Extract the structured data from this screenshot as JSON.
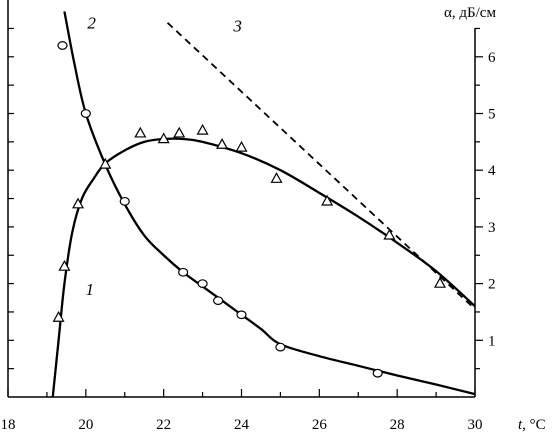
{
  "chart_data": {
    "type": "line",
    "xlabel_var": "t",
    "xlabel_unit": ", °C",
    "ylabel": "α, дБ/см",
    "xlim": [
      18,
      30
    ],
    "ylim": [
      0,
      7
    ],
    "x_tick_labels": [
      "18",
      "20",
      "22",
      "24",
      "26",
      "28",
      "30"
    ],
    "y_tick_labels": [
      "1",
      "2",
      "3",
      "4",
      "5",
      "6"
    ],
    "series": [
      {
        "name": "1",
        "marker": "triangle",
        "style": "solid",
        "curve": [
          [
            19.15,
            0.0
          ],
          [
            19.3,
            1.0
          ],
          [
            19.45,
            2.0
          ],
          [
            19.65,
            2.9
          ],
          [
            19.9,
            3.5
          ],
          [
            20.2,
            3.85
          ],
          [
            20.5,
            4.12
          ],
          [
            21.0,
            4.35
          ],
          [
            21.5,
            4.5
          ],
          [
            22.0,
            4.55
          ],
          [
            22.5,
            4.55
          ],
          [
            23.0,
            4.5
          ],
          [
            24.0,
            4.3
          ],
          [
            25.0,
            4.0
          ],
          [
            26.0,
            3.6
          ],
          [
            27.0,
            3.18
          ],
          [
            28.0,
            2.72
          ],
          [
            29.0,
            2.22
          ],
          [
            30.0,
            1.6
          ]
        ],
        "points": [
          [
            19.3,
            1.4
          ],
          [
            19.45,
            2.3
          ],
          [
            19.8,
            3.4
          ],
          [
            20.5,
            4.1
          ],
          [
            21.4,
            4.65
          ],
          [
            22.0,
            4.55
          ],
          [
            22.4,
            4.65
          ],
          [
            23.0,
            4.7
          ],
          [
            23.5,
            4.45
          ],
          [
            24.0,
            4.4
          ],
          [
            24.9,
            3.85
          ],
          [
            26.2,
            3.45
          ],
          [
            27.8,
            2.85
          ],
          [
            29.1,
            2.0
          ]
        ]
      },
      {
        "name": "2",
        "marker": "circle",
        "style": "solid",
        "curve": [
          [
            19.45,
            6.8
          ],
          [
            19.7,
            5.9
          ],
          [
            20.0,
            5.0
          ],
          [
            20.5,
            4.1
          ],
          [
            21.0,
            3.4
          ],
          [
            21.5,
            2.85
          ],
          [
            22.0,
            2.5
          ],
          [
            22.5,
            2.2
          ],
          [
            23.0,
            1.95
          ],
          [
            23.5,
            1.7
          ],
          [
            24.0,
            1.45
          ],
          [
            24.5,
            1.2
          ],
          [
            25.0,
            0.93
          ],
          [
            26.0,
            0.72
          ],
          [
            27.0,
            0.55
          ],
          [
            28.0,
            0.38
          ],
          [
            29.0,
            0.22
          ],
          [
            30.0,
            0.05
          ]
        ],
        "points": [
          [
            19.4,
            6.2
          ],
          [
            20.0,
            5.0
          ],
          [
            21.0,
            3.45
          ],
          [
            22.5,
            2.2
          ],
          [
            23.0,
            2.0
          ],
          [
            23.4,
            1.7
          ],
          [
            24.0,
            1.45
          ],
          [
            25.0,
            0.88
          ],
          [
            27.5,
            0.42
          ]
        ]
      },
      {
        "name": "3",
        "marker": "none",
        "style": "dashed",
        "curve": [
          [
            22.1,
            6.6
          ],
          [
            30.0,
            1.55
          ]
        ],
        "points": []
      }
    ],
    "curve_label_positions": [
      {
        "name": "1",
        "x": 20.1,
        "y": 1.8
      },
      {
        "name": "2",
        "x": 20.15,
        "y": 6.5
      },
      {
        "name": "3",
        "x": 23.9,
        "y": 6.45
      }
    ],
    "grid": false
  }
}
